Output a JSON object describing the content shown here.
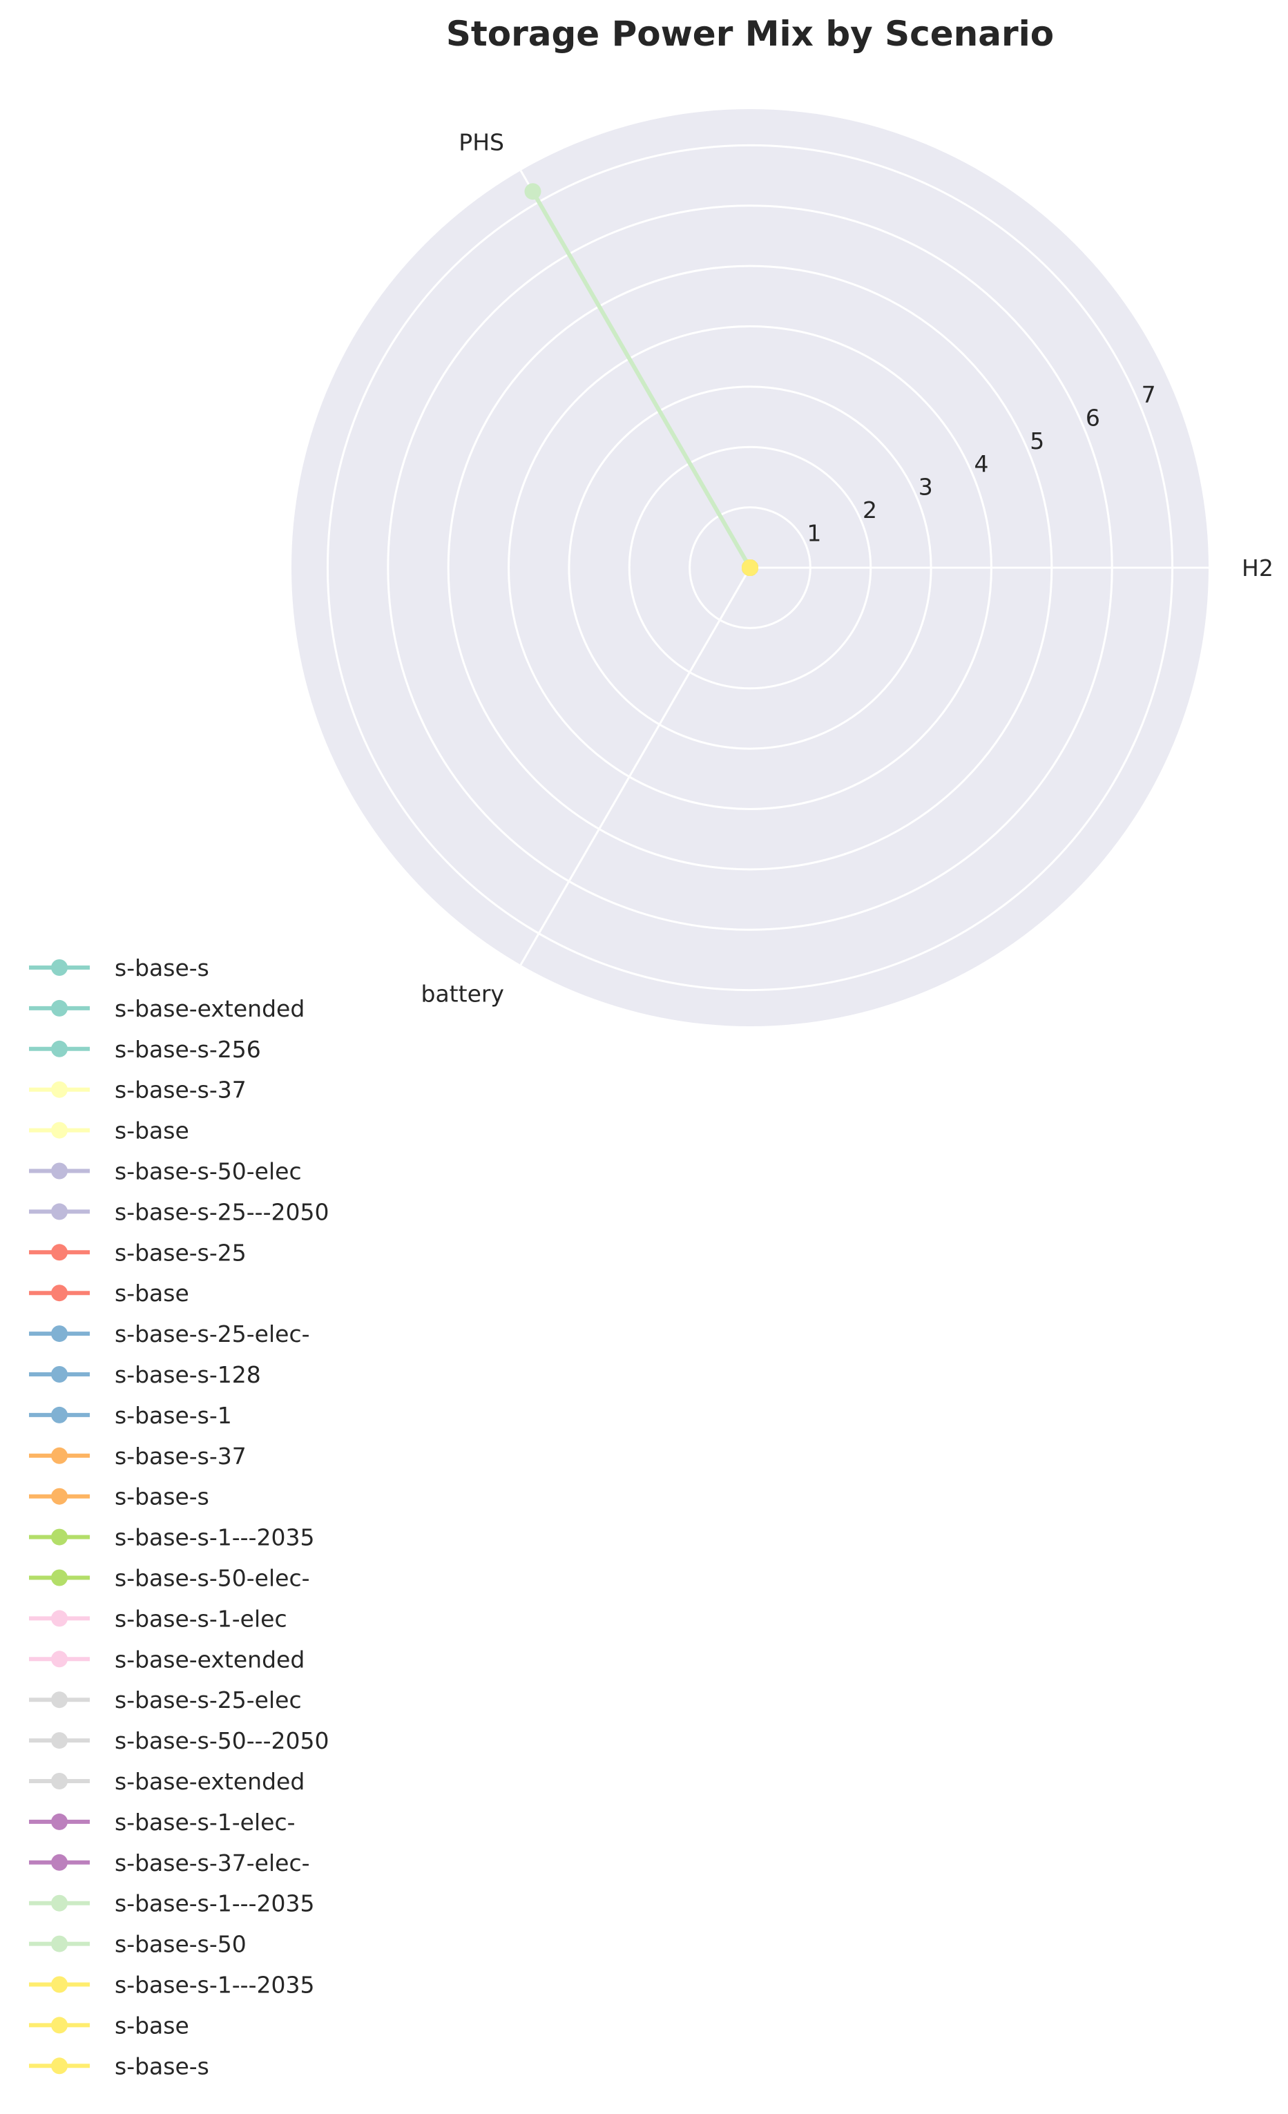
{
  "chart_data": {
    "type": "radar",
    "title": "Storage Power Mix by Scenario",
    "axes": [
      "H2",
      "PHS",
      "battery"
    ],
    "radial_ticks": [
      "1",
      "2",
      "3",
      "4",
      "5",
      "6",
      "7"
    ],
    "rlim": [
      0,
      7.6
    ],
    "grid": true,
    "legend_placement": "lower-left",
    "series": [
      {
        "name": "s-base-s",
        "color": "#8dd3c7",
        "values": [
          0,
          0,
          0
        ]
      },
      {
        "name": "s-base-extended",
        "color": "#8dd3c7",
        "values": [
          0,
          0,
          0
        ]
      },
      {
        "name": "s-base-s-256",
        "color": "#8dd3c7",
        "values": [
          0,
          0,
          0
        ]
      },
      {
        "name": "s-base-s-37",
        "color": "#ffffb3",
        "values": [
          0,
          0,
          0
        ]
      },
      {
        "name": "s-base",
        "color": "#ffffb3",
        "values": [
          0,
          0,
          0
        ]
      },
      {
        "name": "s-base-s-50-elec",
        "color": "#bebada",
        "values": [
          0,
          0,
          0
        ]
      },
      {
        "name": "s-base-s-25---2050",
        "color": "#bebada",
        "values": [
          0,
          0,
          0
        ]
      },
      {
        "name": "s-base-s-25",
        "color": "#fb8072",
        "values": [
          0,
          0,
          0
        ]
      },
      {
        "name": "s-base",
        "color": "#fb8072",
        "values": [
          0,
          0,
          0
        ]
      },
      {
        "name": "s-base-s-25-elec-",
        "color": "#80b1d3",
        "values": [
          0,
          0,
          0
        ]
      },
      {
        "name": "s-base-s-128",
        "color": "#80b1d3",
        "values": [
          0,
          0,
          0
        ]
      },
      {
        "name": "s-base-s-1",
        "color": "#80b1d3",
        "values": [
          0,
          0,
          0
        ]
      },
      {
        "name": "s-base-s-37",
        "color": "#fdb462",
        "values": [
          0,
          0,
          0
        ]
      },
      {
        "name": "s-base-s",
        "color": "#fdb462",
        "values": [
          0,
          0,
          0
        ]
      },
      {
        "name": "s-base-s-1---2035",
        "color": "#b3de69",
        "values": [
          0,
          0,
          0
        ]
      },
      {
        "name": "s-base-s-50-elec-",
        "color": "#b3de69",
        "values": [
          0,
          0,
          0
        ]
      },
      {
        "name": "s-base-s-1-elec",
        "color": "#fccde5",
        "values": [
          0,
          0,
          0
        ]
      },
      {
        "name": "s-base-extended",
        "color": "#fccde5",
        "values": [
          0,
          0,
          0
        ]
      },
      {
        "name": "s-base-s-25-elec",
        "color": "#d9d9d9",
        "values": [
          0,
          0,
          0
        ]
      },
      {
        "name": "s-base-s-50---2050",
        "color": "#d9d9d9",
        "values": [
          0,
          0,
          0
        ]
      },
      {
        "name": "s-base-extended",
        "color": "#d9d9d9",
        "values": [
          0,
          0,
          0
        ]
      },
      {
        "name": "s-base-s-1-elec-",
        "color": "#bc80bd",
        "values": [
          0,
          0,
          0
        ]
      },
      {
        "name": "s-base-s-37-elec-",
        "color": "#bc80bd",
        "values": [
          0,
          0,
          0
        ]
      },
      {
        "name": "s-base-s-1---2035",
        "color": "#ccebc5",
        "values": [
          0,
          7.2,
          0
        ]
      },
      {
        "name": "s-base-s-50",
        "color": "#ccebc5",
        "values": [
          0,
          0,
          0
        ]
      },
      {
        "name": "s-base-s-1---2035",
        "color": "#ffed6f",
        "values": [
          0,
          0,
          0
        ]
      },
      {
        "name": "s-base",
        "color": "#ffed6f",
        "values": [
          0,
          0,
          0
        ]
      },
      {
        "name": "s-base-s",
        "color": "#ffed6f",
        "values": [
          0,
          0,
          0
        ]
      }
    ]
  }
}
